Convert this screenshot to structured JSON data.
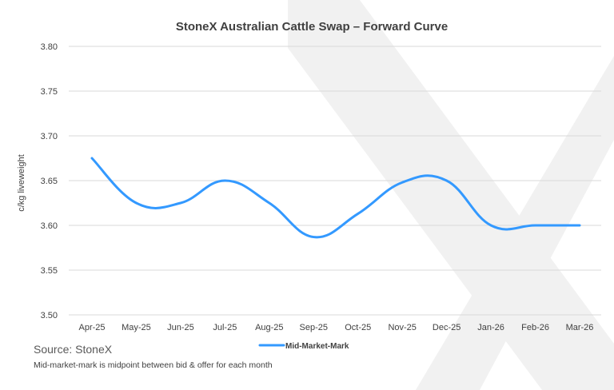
{
  "colors": {
    "series": "#3399ff",
    "grid": "#d9d9d9",
    "text": "#404040",
    "watermark": "#f1f1f1"
  },
  "chart_data": {
    "type": "line",
    "title": "StoneX Australian Cattle Swap – Forward Curve",
    "xlabel": "",
    "ylabel": "c/kg liveweight",
    "ylim": [
      3.5,
      3.8
    ],
    "yticks": [
      "3.50",
      "3.55",
      "3.60",
      "3.65",
      "3.70",
      "3.75",
      "3.80"
    ],
    "categories": [
      "Apr-25",
      "May-25",
      "Jun-25",
      "Jul-25",
      "Aug-25",
      "Sep-25",
      "Oct-25",
      "Nov-25",
      "Dec-25",
      "Jan-26",
      "Feb-26",
      "Mar-26"
    ],
    "series": [
      {
        "name": "Mid-Market-Mark",
        "values": [
          3.675,
          3.625,
          3.625,
          3.65,
          3.625,
          3.587,
          3.613,
          3.648,
          3.65,
          3.6,
          3.6,
          3.6
        ]
      }
    ],
    "grid": true,
    "legend": "bottom-center",
    "watermark": "X"
  },
  "footer": {
    "source": "Source: StoneX",
    "note": "Mid-market-mark is midpoint between bid & offer for each month"
  }
}
